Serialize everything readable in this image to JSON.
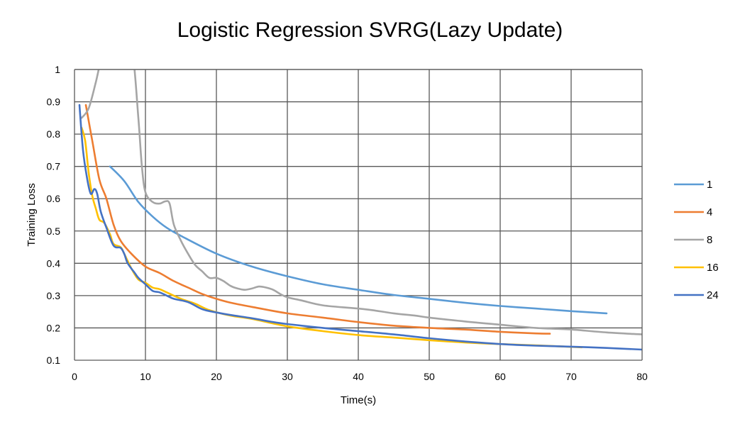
{
  "chart_data": {
    "type": "line",
    "title": "Logistic Regression SVRG(Lazy Update)",
    "xlabel": "Time(s)",
    "ylabel": "Training Loss",
    "xlim": [
      0,
      80
    ],
    "ylim": [
      0.1,
      1
    ],
    "x_ticks": [
      "0",
      "10",
      "20",
      "30",
      "40",
      "50",
      "60",
      "70",
      "80"
    ],
    "y_ticks": [
      "0.1",
      "0.2",
      "0.3",
      "0.4",
      "0.5",
      "0.6",
      "0.7",
      "0.8",
      "0.9",
      "1"
    ],
    "grid": true,
    "legend_position": "right",
    "series": [
      {
        "name": "1",
        "color": "#5b9bd5",
        "points": [
          [
            5,
            0.7
          ],
          [
            7,
            0.655
          ],
          [
            9,
            0.59
          ],
          [
            11,
            0.545
          ],
          [
            13,
            0.51
          ],
          [
            15,
            0.485
          ],
          [
            20,
            0.43
          ],
          [
            25,
            0.39
          ],
          [
            30,
            0.36
          ],
          [
            35,
            0.335
          ],
          [
            40,
            0.318
          ],
          [
            45,
            0.302
          ],
          [
            50,
            0.29
          ],
          [
            55,
            0.278
          ],
          [
            60,
            0.268
          ],
          [
            65,
            0.26
          ],
          [
            70,
            0.252
          ],
          [
            75,
            0.245
          ]
        ]
      },
      {
        "name": "4",
        "color": "#ed7d31",
        "points": [
          [
            1.6,
            0.89
          ],
          [
            2.5,
            0.78
          ],
          [
            3.5,
            0.66
          ],
          [
            4.5,
            0.6
          ],
          [
            5.5,
            0.52
          ],
          [
            6.5,
            0.47
          ],
          [
            8,
            0.43
          ],
          [
            10,
            0.39
          ],
          [
            12,
            0.37
          ],
          [
            14,
            0.345
          ],
          [
            16,
            0.325
          ],
          [
            18,
            0.305
          ],
          [
            20,
            0.29
          ],
          [
            22,
            0.278
          ],
          [
            25,
            0.265
          ],
          [
            30,
            0.245
          ],
          [
            35,
            0.232
          ],
          [
            40,
            0.218
          ],
          [
            45,
            0.207
          ],
          [
            50,
            0.2
          ],
          [
            55,
            0.195
          ],
          [
            60,
            0.188
          ],
          [
            65,
            0.183
          ],
          [
            67,
            0.182
          ]
        ]
      },
      {
        "name": "8",
        "color": "#a5a5a5",
        "points": [
          [
            1,
            0.85
          ],
          [
            2,
            0.88
          ],
          [
            3,
            0.96
          ],
          [
            4,
            1.05
          ],
          [
            5.5,
            1.12
          ],
          [
            7,
            1.12
          ],
          [
            8.2,
            1.05
          ],
          [
            9,
            0.85
          ],
          [
            9.5,
            0.7
          ],
          [
            10,
            0.62
          ],
          [
            11,
            0.59
          ],
          [
            12,
            0.585
          ],
          [
            12.8,
            0.592
          ],
          [
            13.4,
            0.585
          ],
          [
            14,
            0.52
          ],
          [
            15,
            0.47
          ],
          [
            16,
            0.43
          ],
          [
            17,
            0.395
          ],
          [
            18,
            0.375
          ],
          [
            19,
            0.355
          ],
          [
            20,
            0.355
          ],
          [
            21,
            0.345
          ],
          [
            22,
            0.33
          ],
          [
            23,
            0.322
          ],
          [
            24,
            0.318
          ],
          [
            25,
            0.322
          ],
          [
            26,
            0.328
          ],
          [
            27,
            0.325
          ],
          [
            28,
            0.318
          ],
          [
            29,
            0.305
          ],
          [
            30,
            0.295
          ],
          [
            32,
            0.285
          ],
          [
            35,
            0.27
          ],
          [
            40,
            0.26
          ],
          [
            42,
            0.255
          ],
          [
            45,
            0.245
          ],
          [
            48,
            0.238
          ],
          [
            50,
            0.232
          ],
          [
            55,
            0.22
          ],
          [
            60,
            0.21
          ],
          [
            65,
            0.2
          ],
          [
            70,
            0.195
          ],
          [
            75,
            0.186
          ],
          [
            80,
            0.18
          ]
        ]
      },
      {
        "name": "16",
        "color": "#ffc000",
        "points": [
          [
            1,
            0.82
          ],
          [
            1.5,
            0.78
          ],
          [
            2,
            0.68
          ],
          [
            2.5,
            0.61
          ],
          [
            3,
            0.57
          ],
          [
            3.5,
            0.535
          ],
          [
            4.2,
            0.525
          ],
          [
            5,
            0.49
          ],
          [
            5.5,
            0.46
          ],
          [
            6.5,
            0.45
          ],
          [
            7,
            0.43
          ],
          [
            8,
            0.385
          ],
          [
            9,
            0.35
          ],
          [
            10,
            0.34
          ],
          [
            11,
            0.325
          ],
          [
            12,
            0.32
          ],
          [
            13,
            0.31
          ],
          [
            15,
            0.29
          ],
          [
            17,
            0.275
          ],
          [
            19,
            0.255
          ],
          [
            22,
            0.238
          ],
          [
            25,
            0.228
          ],
          [
            30,
            0.205
          ],
          [
            35,
            0.19
          ],
          [
            40,
            0.178
          ],
          [
            45,
            0.17
          ],
          [
            50,
            0.162
          ],
          [
            55,
            0.155
          ],
          [
            60,
            0.15
          ],
          [
            65,
            0.146
          ],
          [
            71.5,
            0.14
          ]
        ]
      },
      {
        "name": "24",
        "color": "#4472c4",
        "points": [
          [
            0.7,
            0.89
          ],
          [
            1.2,
            0.75
          ],
          [
            1.8,
            0.66
          ],
          [
            2.3,
            0.615
          ],
          [
            2.8,
            0.63
          ],
          [
            3.2,
            0.615
          ],
          [
            3.7,
            0.56
          ],
          [
            4.5,
            0.51
          ],
          [
            5.5,
            0.455
          ],
          [
            6.5,
            0.448
          ],
          [
            7,
            0.43
          ],
          [
            7.5,
            0.4
          ],
          [
            8.5,
            0.37
          ],
          [
            9,
            0.355
          ],
          [
            10,
            0.335
          ],
          [
            11,
            0.315
          ],
          [
            12,
            0.31
          ],
          [
            13,
            0.3
          ],
          [
            14,
            0.29
          ],
          [
            16,
            0.28
          ],
          [
            18,
            0.258
          ],
          [
            20,
            0.248
          ],
          [
            22,
            0.24
          ],
          [
            25,
            0.23
          ],
          [
            28,
            0.218
          ],
          [
            30,
            0.212
          ],
          [
            35,
            0.2
          ],
          [
            40,
            0.19
          ],
          [
            45,
            0.18
          ],
          [
            50,
            0.168
          ],
          [
            55,
            0.158
          ],
          [
            60,
            0.15
          ],
          [
            65,
            0.145
          ],
          [
            70,
            0.142
          ],
          [
            75,
            0.138
          ],
          [
            80,
            0.133
          ]
        ]
      }
    ]
  }
}
